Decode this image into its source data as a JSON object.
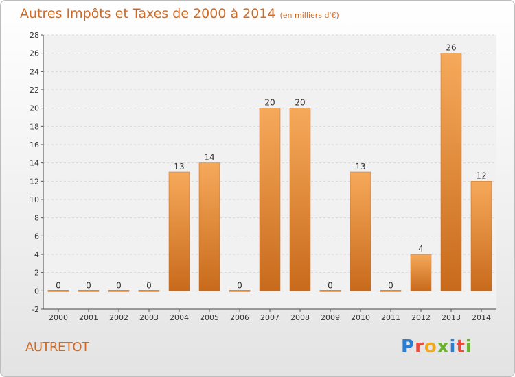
{
  "title": "Autres Impôts et Taxes de 2000 à 2014",
  "subtitle": "(en milliers d'€)",
  "town": "AUTRETOT",
  "brand": "Proxiti",
  "colors": {
    "accent": "#d06a25",
    "bar_top": "#f6a95a",
    "bar_bottom": "#c86a1c"
  },
  "chart_data": {
    "type": "bar",
    "categories": [
      "2000",
      "2001",
      "2002",
      "2003",
      "2004",
      "2005",
      "2006",
      "2007",
      "2008",
      "2009",
      "2010",
      "2011",
      "2012",
      "2013",
      "2014"
    ],
    "values": [
      0,
      0,
      0,
      0,
      13,
      14,
      0,
      20,
      20,
      0,
      13,
      0,
      4,
      26,
      12
    ],
    "ylim": [
      -2,
      28
    ],
    "yticks": [
      -2,
      0,
      2,
      4,
      6,
      8,
      10,
      12,
      14,
      16,
      18,
      20,
      22,
      24,
      26,
      28
    ],
    "grid": true,
    "xlabel": "",
    "ylabel": ""
  }
}
